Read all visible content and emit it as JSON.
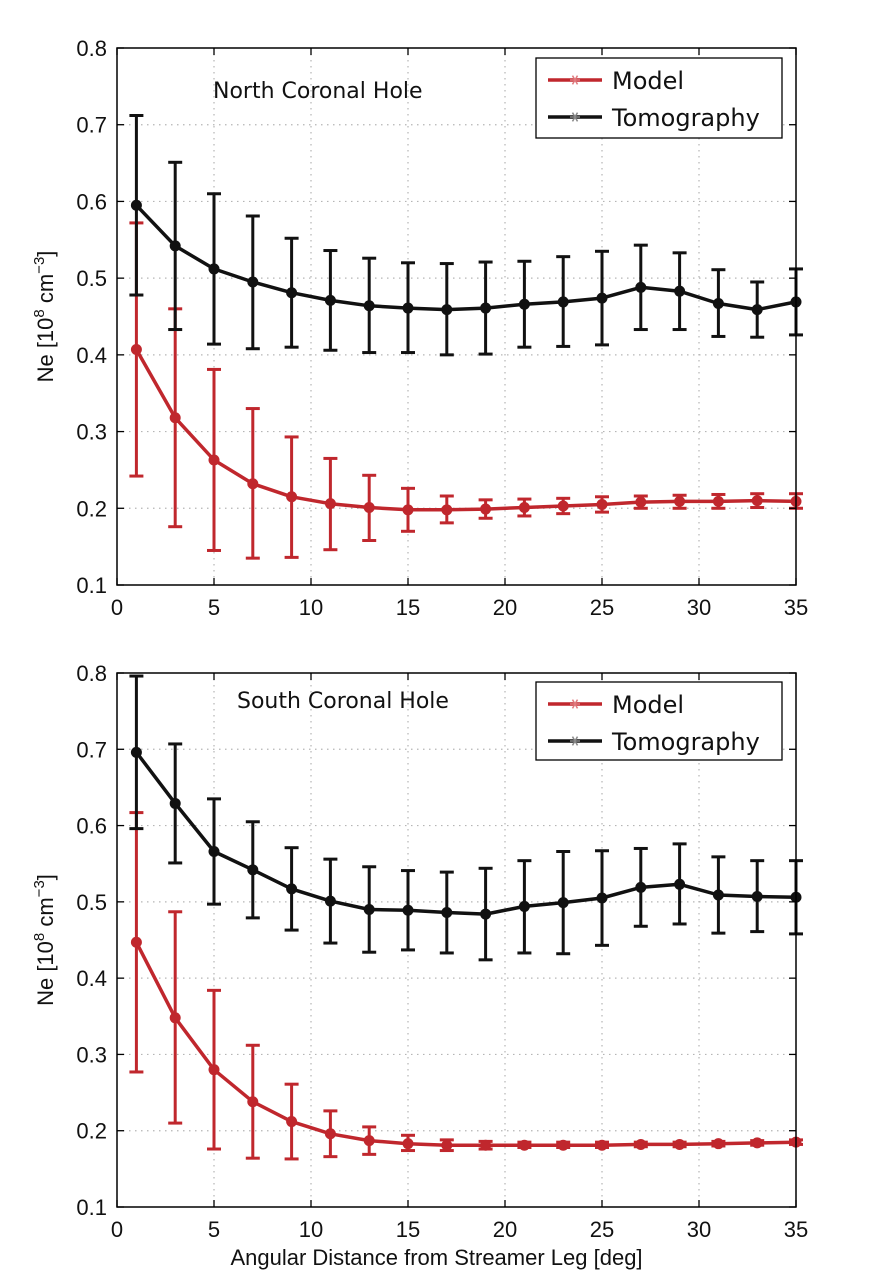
{
  "chart_data": [
    {
      "type": "line",
      "title": "North Coronal Hole",
      "xlabel": "",
      "ylabel_prefix": "Ne [10",
      "ylabel_exp1": "8",
      "ylabel_unit": " cm",
      "ylabel_exp2": "−3",
      "ylabel_suffix": "]",
      "xlim": [
        0,
        35
      ],
      "ylim": [
        0.1,
        0.8
      ],
      "xticks": [
        0,
        5,
        10,
        15,
        20,
        25,
        30,
        35
      ],
      "yticks": [
        0.1,
        0.2,
        0.3,
        0.4,
        0.5,
        0.6,
        0.7,
        0.8
      ],
      "grid": true,
      "legend_position": "top-right",
      "series": [
        {
          "name": "Model",
          "color": "#c0272d",
          "x": [
            1,
            3,
            5,
            7,
            9,
            11,
            13,
            15,
            17,
            19,
            21,
            23,
            25,
            27,
            29,
            31,
            33,
            35
          ],
          "y": [
            0.407,
            0.318,
            0.263,
            0.232,
            0.215,
            0.206,
            0.201,
            0.198,
            0.198,
            0.199,
            0.201,
            0.203,
            0.205,
            0.208,
            0.209,
            0.209,
            0.21,
            0.209
          ],
          "err_low": [
            0.242,
            0.176,
            0.145,
            0.135,
            0.136,
            0.146,
            0.158,
            0.17,
            0.181,
            0.187,
            0.19,
            0.193,
            0.195,
            0.2,
            0.2,
            0.2,
            0.201,
            0.2
          ],
          "err_high": [
            0.572,
            0.46,
            0.381,
            0.33,
            0.293,
            0.265,
            0.243,
            0.226,
            0.216,
            0.211,
            0.212,
            0.213,
            0.215,
            0.216,
            0.217,
            0.218,
            0.219,
            0.219
          ]
        },
        {
          "name": "Tomography",
          "color": "#111111",
          "x": [
            1,
            3,
            5,
            7,
            9,
            11,
            13,
            15,
            17,
            19,
            21,
            23,
            25,
            27,
            29,
            31,
            33,
            35
          ],
          "y": [
            0.595,
            0.542,
            0.512,
            0.495,
            0.481,
            0.471,
            0.464,
            0.461,
            0.459,
            0.461,
            0.466,
            0.469,
            0.474,
            0.488,
            0.483,
            0.467,
            0.459,
            0.469
          ],
          "err_low": [
            0.478,
            0.433,
            0.414,
            0.408,
            0.41,
            0.406,
            0.403,
            0.403,
            0.4,
            0.401,
            0.41,
            0.411,
            0.413,
            0.433,
            0.433,
            0.424,
            0.423,
            0.426
          ],
          "err_high": [
            0.712,
            0.651,
            0.61,
            0.581,
            0.552,
            0.536,
            0.526,
            0.52,
            0.519,
            0.521,
            0.522,
            0.528,
            0.535,
            0.543,
            0.533,
            0.511,
            0.495,
            0.512
          ]
        }
      ]
    },
    {
      "type": "line",
      "title": "South Coronal Hole",
      "xlabel": "Angular Distance from Streamer Leg [deg]",
      "ylabel_prefix": "Ne [10",
      "ylabel_exp1": "8",
      "ylabel_unit": " cm",
      "ylabel_exp2": "−3",
      "ylabel_suffix": "]",
      "xlim": [
        0,
        35
      ],
      "ylim": [
        0.1,
        0.8
      ],
      "xticks": [
        0,
        5,
        10,
        15,
        20,
        25,
        30,
        35
      ],
      "yticks": [
        0.1,
        0.2,
        0.3,
        0.4,
        0.5,
        0.6,
        0.7,
        0.8
      ],
      "grid": true,
      "legend_position": "top-right",
      "series": [
        {
          "name": "Model",
          "color": "#c0272d",
          "x": [
            1,
            3,
            5,
            7,
            9,
            11,
            13,
            15,
            17,
            19,
            21,
            23,
            25,
            27,
            29,
            31,
            33,
            35
          ],
          "y": [
            0.447,
            0.348,
            0.28,
            0.238,
            0.212,
            0.196,
            0.187,
            0.183,
            0.181,
            0.181,
            0.181,
            0.181,
            0.181,
            0.182,
            0.182,
            0.183,
            0.184,
            0.185
          ],
          "err_low": [
            0.277,
            0.21,
            0.176,
            0.164,
            0.163,
            0.166,
            0.169,
            0.174,
            0.174,
            0.176,
            0.178,
            0.178,
            0.178,
            0.179,
            0.179,
            0.18,
            0.181,
            0.182
          ],
          "err_high": [
            0.617,
            0.487,
            0.384,
            0.312,
            0.261,
            0.226,
            0.205,
            0.194,
            0.188,
            0.186,
            0.185,
            0.185,
            0.185,
            0.185,
            0.185,
            0.186,
            0.187,
            0.188
          ]
        },
        {
          "name": "Tomography",
          "color": "#111111",
          "x": [
            1,
            3,
            5,
            7,
            9,
            11,
            13,
            15,
            17,
            19,
            21,
            23,
            25,
            27,
            29,
            31,
            33,
            35
          ],
          "y": [
            0.696,
            0.629,
            0.566,
            0.542,
            0.517,
            0.501,
            0.49,
            0.489,
            0.486,
            0.484,
            0.494,
            0.499,
            0.505,
            0.519,
            0.523,
            0.509,
            0.507,
            0.506
          ],
          "err_low": [
            0.596,
            0.551,
            0.497,
            0.479,
            0.463,
            0.446,
            0.434,
            0.437,
            0.433,
            0.424,
            0.433,
            0.432,
            0.443,
            0.468,
            0.471,
            0.459,
            0.461,
            0.458
          ],
          "err_high": [
            0.796,
            0.707,
            0.635,
            0.605,
            0.571,
            0.556,
            0.546,
            0.541,
            0.539,
            0.544,
            0.554,
            0.566,
            0.567,
            0.57,
            0.576,
            0.559,
            0.554,
            0.554
          ]
        }
      ]
    }
  ]
}
